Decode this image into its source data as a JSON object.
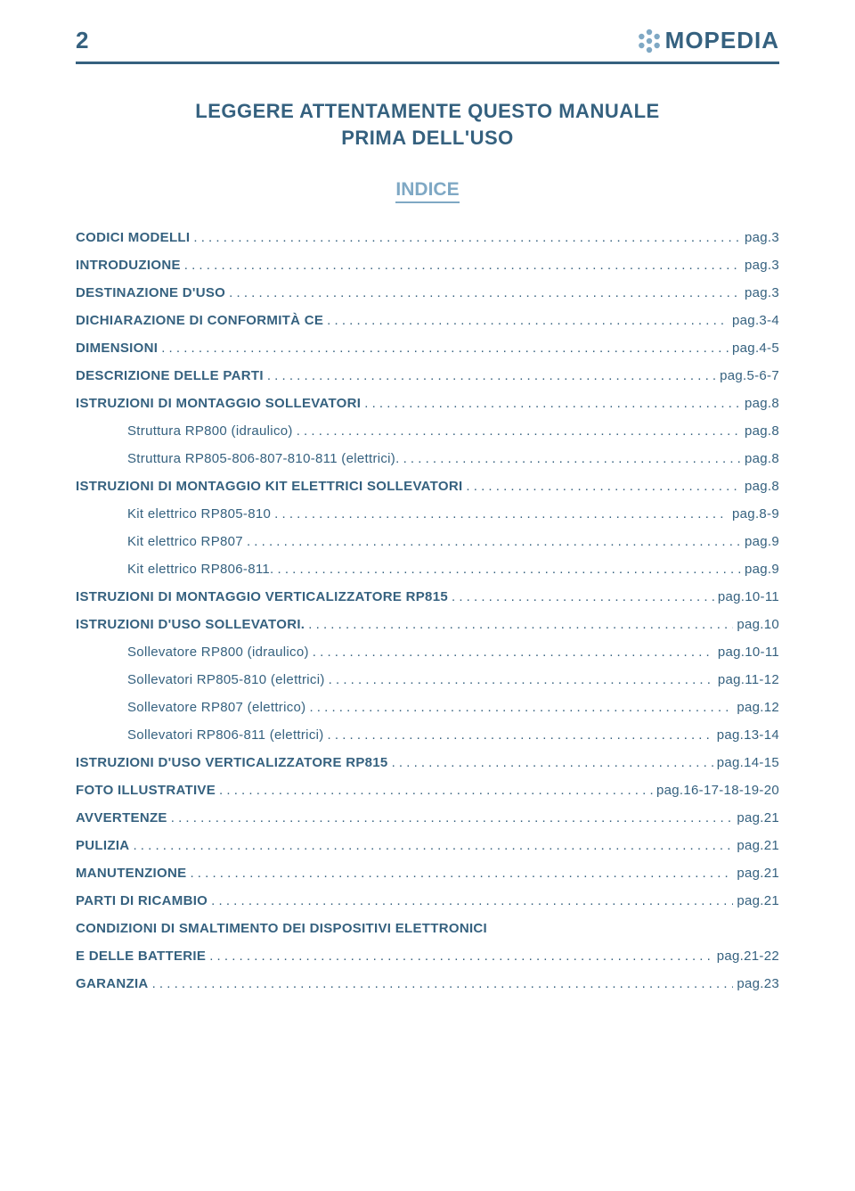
{
  "page_number": "2",
  "brand": "MOPEDIA",
  "brand_color": "#35617f",
  "accent_color": "#7fa8c4",
  "title_line1": "LEGGERE ATTENTAMENTE QUESTO MANUALE",
  "title_line2": "PRIMA DELL'USO",
  "toc_title": "INDICE",
  "toc": [
    {
      "label": "CODICI MODELLI",
      "page": "pag.3",
      "bold": true,
      "sub": false
    },
    {
      "label": "INTRODUZIONE",
      "page": "pag.3",
      "bold": true,
      "sub": false
    },
    {
      "label": "DESTINAZIONE D'USO",
      "page": "pag.3",
      "bold": true,
      "sub": false
    },
    {
      "label": "DICHIARAZIONE DI CONFORMITÀ CE",
      "page": "pag.3-4",
      "bold": true,
      "sub": false
    },
    {
      "label": "DIMENSIONI",
      "page": "pag.4-5",
      "bold": true,
      "sub": false
    },
    {
      "label": "DESCRIZIONE DELLE PARTI",
      "page": "pag.5-6-7",
      "bold": true,
      "sub": false
    },
    {
      "label": "ISTRUZIONI DI MONTAGGIO SOLLEVATORI",
      "page": "pag.8",
      "bold": true,
      "sub": false
    },
    {
      "label": "Struttura RP800 (idraulico)",
      "page": "pag.8",
      "bold": false,
      "sub": true
    },
    {
      "label": "Struttura RP805-806-807-810-811 (elettrici).",
      "page": "pag.8",
      "bold": false,
      "sub": true
    },
    {
      "label": "ISTRUZIONI DI MONTAGGIO KIT ELETTRICI SOLLEVATORI",
      "page": "pag.8",
      "bold": true,
      "sub": false
    },
    {
      "label": "Kit elettrico RP805-810",
      "page": "pag.8-9",
      "bold": false,
      "sub": true
    },
    {
      "label": "Kit elettrico RP807",
      "page": "pag.9",
      "bold": false,
      "sub": true
    },
    {
      "label": "Kit elettrico RP806-811.",
      "page": "pag.9",
      "bold": false,
      "sub": true
    },
    {
      "label": "ISTRUZIONI DI MONTAGGIO VERTICALIZZATORE RP815",
      "page": "pag.10-11",
      "bold": true,
      "sub": false
    },
    {
      "label": "ISTRUZIONI D'USO SOLLEVATORI.",
      "page": "pag.10",
      "bold": true,
      "sub": false
    },
    {
      "label": "Sollevatore RP800 (idraulico)",
      "page": "pag.10-11",
      "bold": false,
      "sub": true
    },
    {
      "label": "Sollevatori RP805-810 (elettrici)",
      "page": "pag.11-12",
      "bold": false,
      "sub": true
    },
    {
      "label": "Sollevatore RP807 (elettrico)",
      "page": "pag.12",
      "bold": false,
      "sub": true
    },
    {
      "label": "Sollevatori RP806-811 (elettrici)",
      "page": "pag.13-14",
      "bold": false,
      "sub": true
    },
    {
      "label": "ISTRUZIONI D'USO VERTICALIZZATORE RP815",
      "page": "pag.14-15",
      "bold": true,
      "sub": false
    },
    {
      "label": "FOTO ILLUSTRATIVE",
      "page": "pag.16-17-18-19-20",
      "bold": true,
      "sub": false
    },
    {
      "label": "AVVERTENZE",
      "page": "pag.21",
      "bold": true,
      "sub": false
    },
    {
      "label": "PULIZIA",
      "page": "pag.21",
      "bold": true,
      "sub": false
    },
    {
      "label": "MANUTENZIONE",
      "page": "pag.21",
      "bold": true,
      "sub": false
    },
    {
      "label": "PARTI DI RICAMBIO",
      "page": "pag.21",
      "bold": true,
      "sub": false
    },
    {
      "label": "CONDIZIONI DI SMALTIMENTO DEI DISPOSITIVI ELETTRONICI",
      "page": "",
      "bold": true,
      "sub": false,
      "nodots": true
    },
    {
      "label": "E DELLE BATTERIE",
      "page": "pag.21-22",
      "bold": true,
      "sub": false
    },
    {
      "label": "GARANZIA",
      "page": "pag.23",
      "bold": true,
      "sub": false
    }
  ]
}
